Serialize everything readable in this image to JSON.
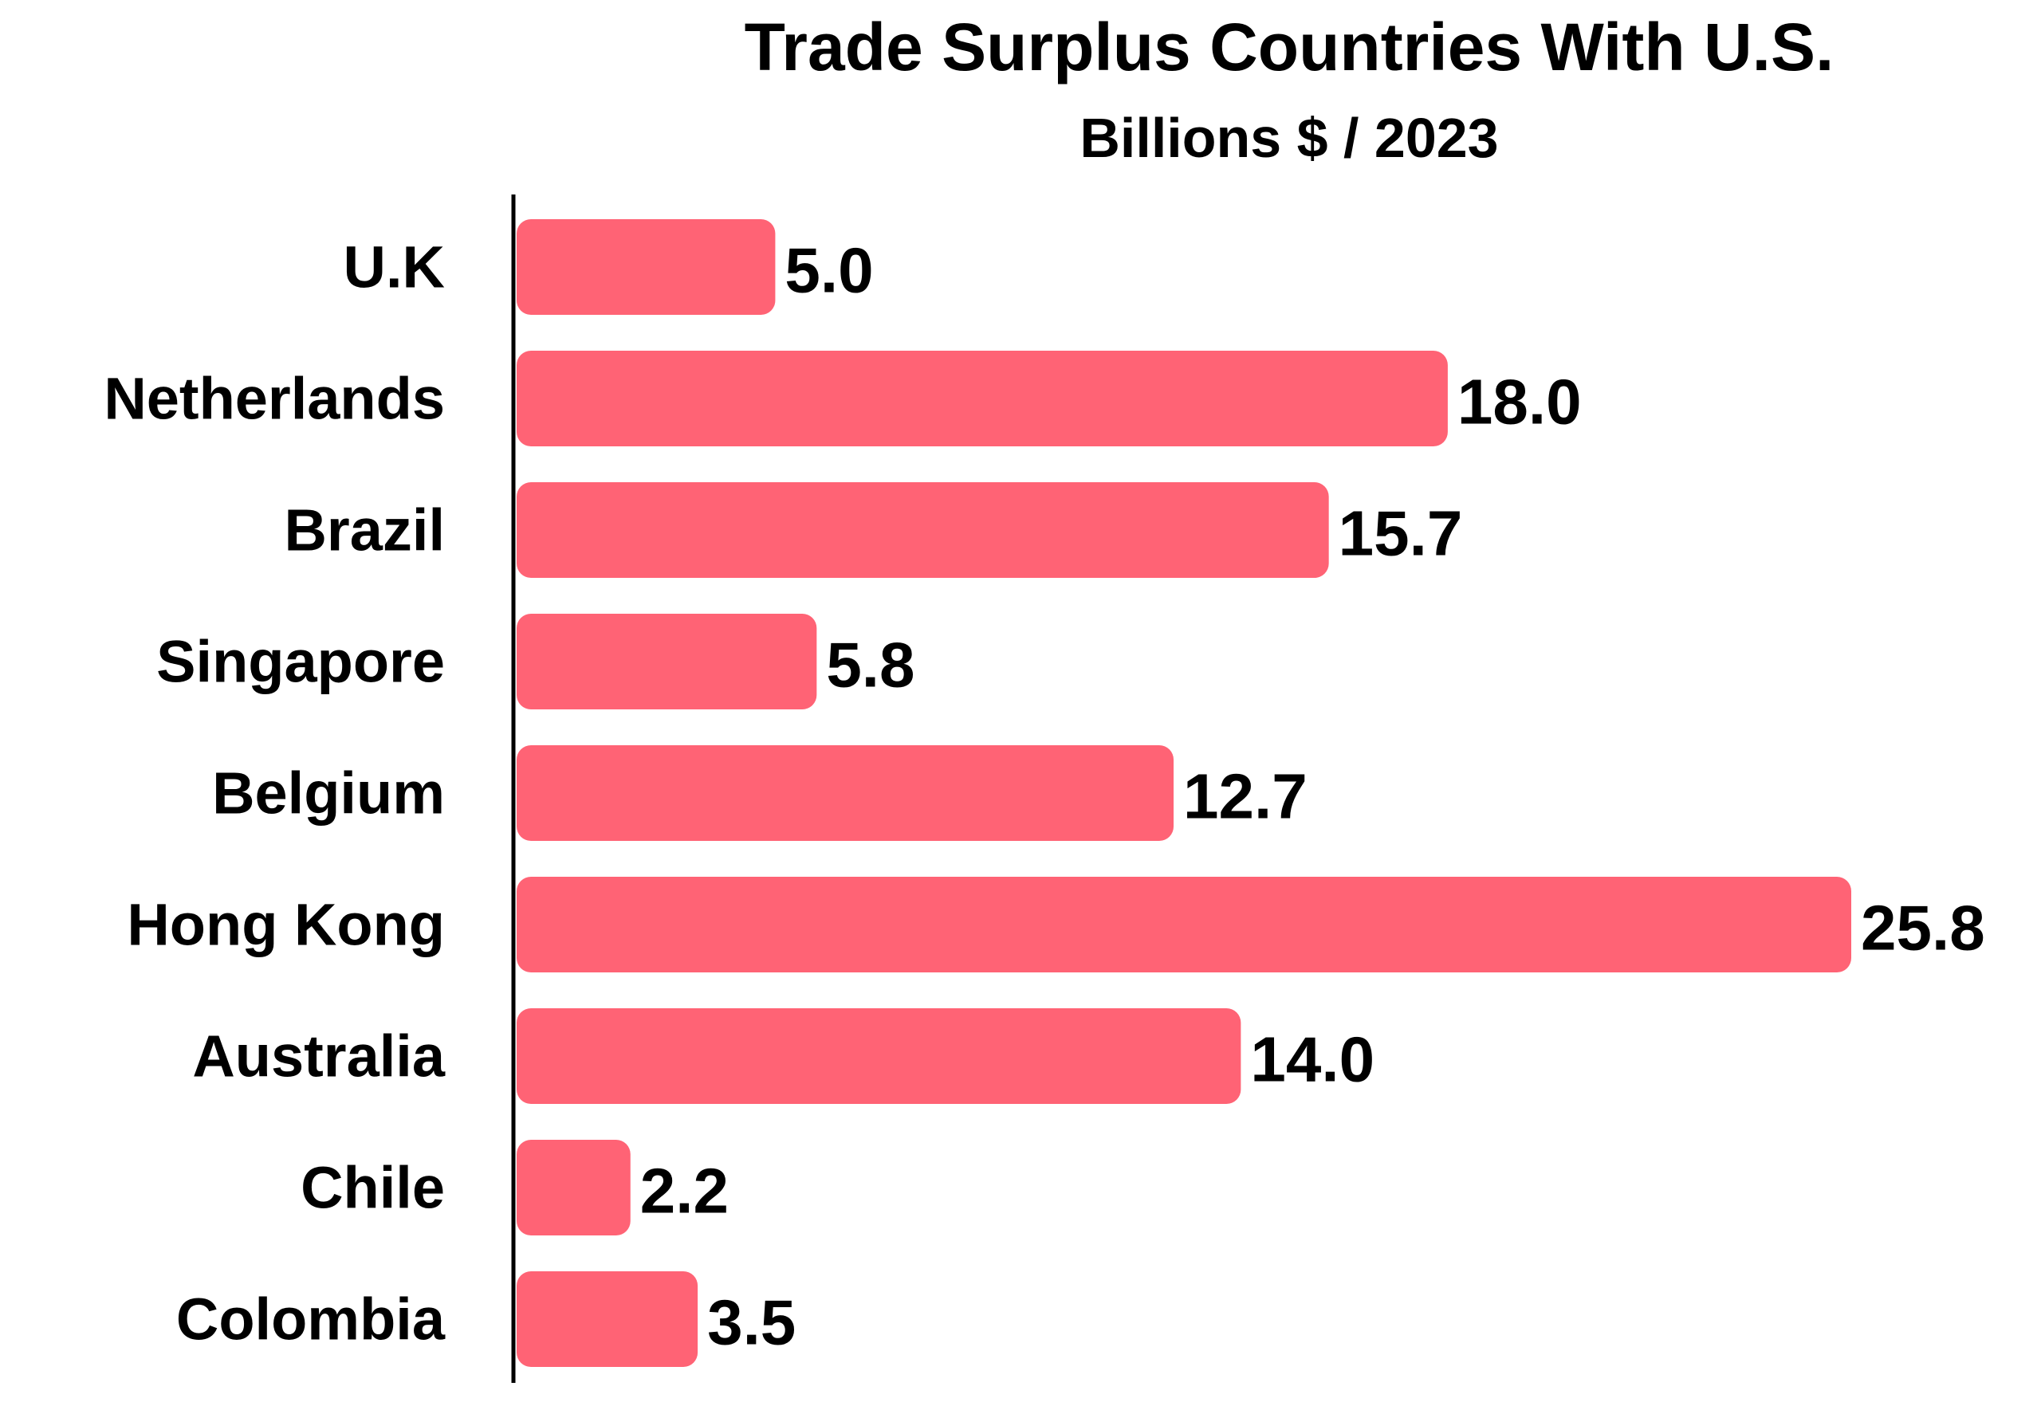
{
  "chart_data": {
    "type": "bar",
    "orientation": "horizontal",
    "title": "Trade Surplus Countries With U.S.",
    "subtitle": "Billions $ / 2023",
    "xlabel": "",
    "ylabel": "",
    "categories": [
      "U.K",
      "Netherlands",
      "Brazil",
      "Singapore",
      "Belgium",
      "Hong Kong",
      "Australia",
      "Chile",
      "Colombia"
    ],
    "values": [
      5.0,
      18.0,
      15.7,
      5.8,
      12.7,
      25.8,
      14.0,
      2.2,
      3.5
    ],
    "value_labels": [
      "5.0",
      "18.0",
      "15.7",
      "5.8",
      "12.7",
      "25.8",
      "14.0",
      "2.2",
      "3.5"
    ],
    "xlim": [
      0,
      25.8
    ],
    "grid": false,
    "legend": "none",
    "bar_color": "#FF6375",
    "axis_color": "#000000"
  }
}
